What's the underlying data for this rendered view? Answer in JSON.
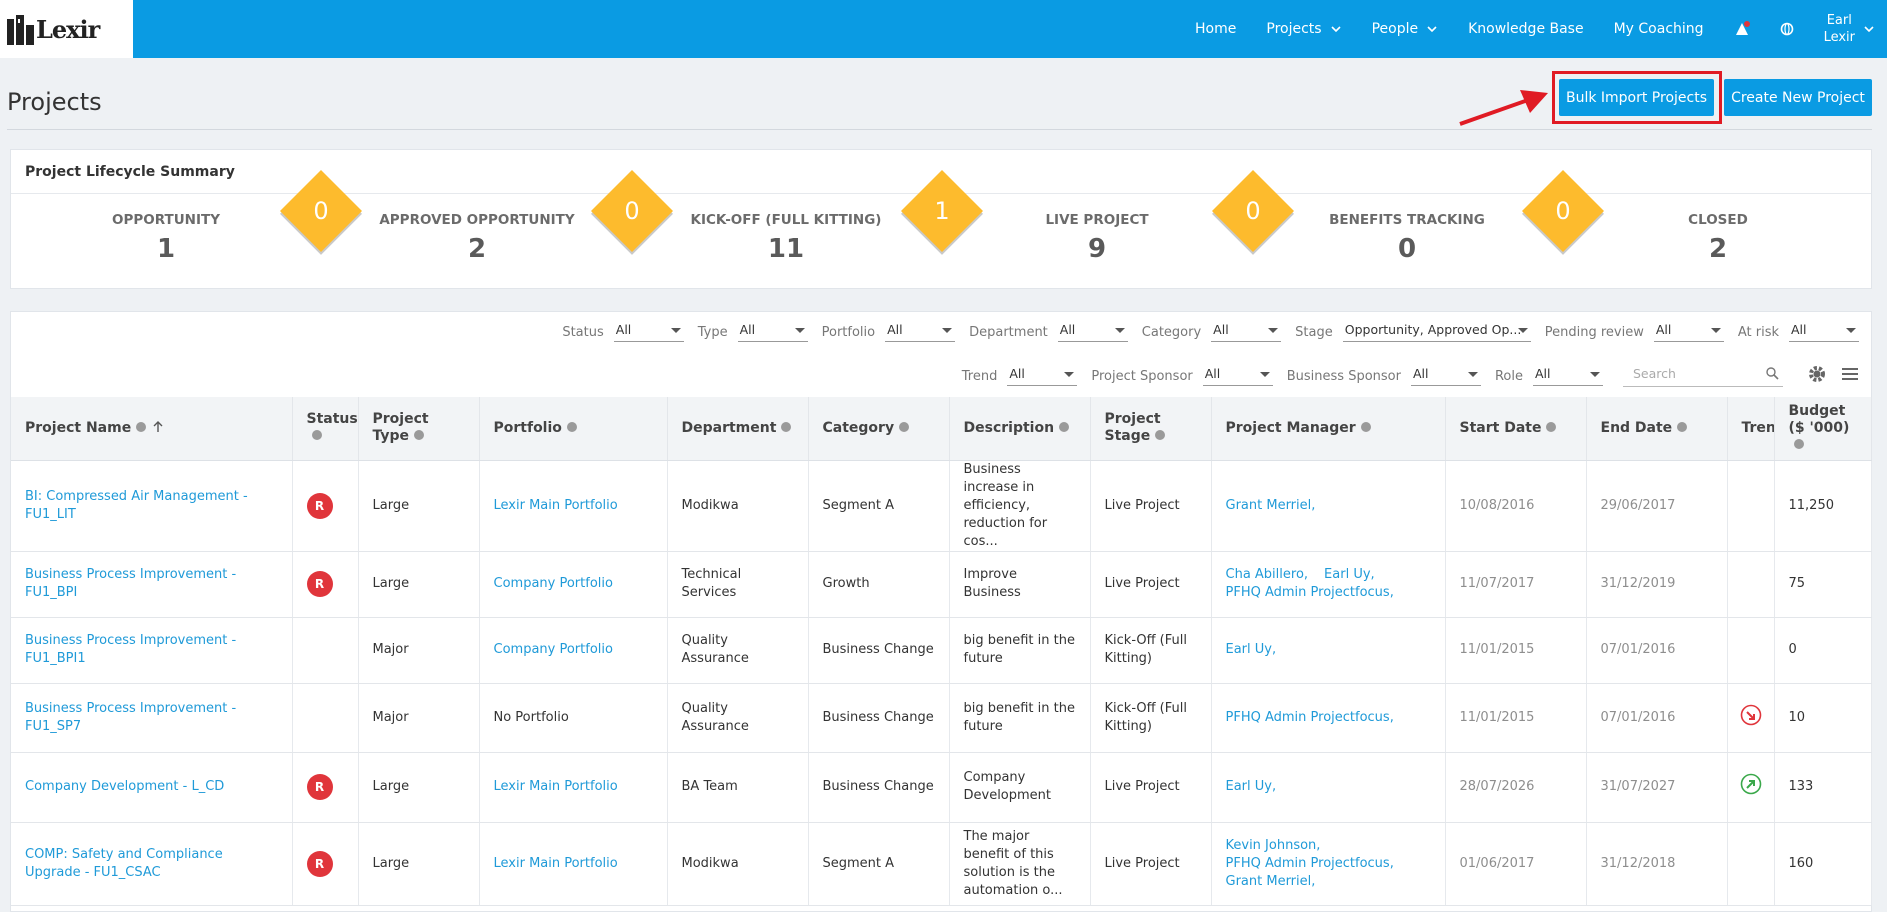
{
  "nav": {
    "logo": "Lexir",
    "items": [
      {
        "label": "Home"
      },
      {
        "label": "Projects",
        "dropdown": true
      },
      {
        "label": "People",
        "dropdown": true
      },
      {
        "label": "Knowledge Base"
      },
      {
        "label": "My Coaching"
      }
    ],
    "user": [
      "Earl",
      "Lexir"
    ]
  },
  "header": {
    "title": "Projects",
    "buttons": [
      "Bulk Import Projects",
      "Create New Project"
    ]
  },
  "summary": {
    "title": "Project Lifecycle Summary",
    "stages": [
      {
        "label": "OPPORTUNITY",
        "count": 1
      },
      {
        "label": "APPROVED OPPORTUNITY",
        "count": 2
      },
      {
        "label": "KICK-OFF (FULL KITTING)",
        "count": 11
      },
      {
        "label": "LIVE PROJECT",
        "count": 9
      },
      {
        "label": "BENEFITS TRACKING",
        "count": 0
      },
      {
        "label": "CLOSED",
        "count": 2
      }
    ],
    "transitions": [
      0,
      0,
      1,
      0,
      0
    ]
  },
  "filters": {
    "rows": [
      [
        {
          "label": "Status",
          "value": "All"
        },
        {
          "label": "Type",
          "value": "All"
        },
        {
          "label": "Portfolio",
          "value": "All"
        },
        {
          "label": "Department",
          "value": "All"
        },
        {
          "label": "Category",
          "value": "All"
        },
        {
          "label": "Stage",
          "value": "Opportunity, Approved Op...",
          "wide": true
        },
        {
          "label": "Pending review",
          "value": "All"
        },
        {
          "label": "At risk",
          "value": "All"
        }
      ],
      [
        {
          "label": "Trend",
          "value": "All"
        },
        {
          "label": "Project Sponsor",
          "value": "All"
        },
        {
          "label": "Business Sponsor",
          "value": "All"
        },
        {
          "label": "Role",
          "value": "All"
        }
      ]
    ],
    "search_placeholder": "Search"
  },
  "table": {
    "columns": [
      {
        "label": "Project Name",
        "style": "link",
        "sort": "asc"
      },
      {
        "label": "Status",
        "style": "badge"
      },
      {
        "label": "Project Type",
        "style": "text"
      },
      {
        "label": "Portfolio",
        "style": "link"
      },
      {
        "label": "Department",
        "style": "text"
      },
      {
        "label": "Category",
        "style": "text"
      },
      {
        "label": "Description",
        "style": "text"
      },
      {
        "label": "Project Stage",
        "style": "text"
      },
      {
        "label": "Project Manager",
        "style": "link"
      },
      {
        "label": "Start Date",
        "style": "date"
      },
      {
        "label": "End Date",
        "style": "date"
      },
      {
        "label": "Trend",
        "style": "trend"
      },
      {
        "label": "Budget ($ '000)",
        "style": "text"
      }
    ],
    "rows": [
      {
        "cells": [
          "BI: Compressed Air Management - FU1_LIT",
          "R",
          "Large",
          "Lexir Main Portfolio",
          "Modikwa",
          "Segment A",
          "Business increase in efficiency, reduction for cos...",
          "Live Project",
          [
            "Grant Merriel,"
          ],
          "10/08/2016",
          "29/06/2017",
          null,
          "11,250"
        ]
      },
      {
        "cells": [
          "Business Process Improvement - FU1_BPI",
          "R",
          "Large",
          "Company Portfolio",
          "Technical Services",
          "Growth",
          "Improve Business",
          "Live Project",
          [
            "Cha Abillero,",
            "Earl Uy,",
            "PFHQ Admin Projectfocus,"
          ],
          "11/07/2017",
          "31/12/2019",
          null,
          "75"
        ]
      },
      {
        "cells": [
          "Business Process Improvement - FU1_BPI1",
          null,
          "Major",
          "Company Portfolio",
          "Quality Assurance",
          "Business Change",
          "big benefit in the future",
          "Kick-Off (Full Kitting)",
          [
            "Earl Uy,"
          ],
          "11/01/2015",
          "07/01/2016",
          null,
          "0"
        ]
      },
      {
        "cells": [
          "Business Process Improvement - FU1_SP7",
          null,
          "Major",
          {
            "text": "No Portfolio",
            "style": "text"
          },
          "Quality Assurance",
          "Business Change",
          "big benefit in the future",
          "Kick-Off (Full Kitting)",
          [
            "PFHQ Admin Projectfocus,"
          ],
          "11/01/2015",
          "07/01/2016",
          "down",
          "10"
        ]
      },
      {
        "cells": [
          "Company Development - L_CD",
          "R",
          "Large",
          "Lexir Main Portfolio",
          "BA Team",
          "Business Change",
          "Company Development",
          "Live Project",
          [
            "Earl Uy,"
          ],
          "28/07/2026",
          "31/07/2027",
          "up",
          "133"
        ]
      },
      {
        "cells": [
          "COMP: Safety and Compliance Upgrade - FU1_CSAC",
          "R",
          "Large",
          "Lexir Main Portfolio",
          "Modikwa",
          "Segment A",
          "The major benefit of this solution is the automation o...",
          "Live Project",
          [
            "Kevin Johnson,",
            "PFHQ Admin Projectfocus,",
            "Grant Merriel,"
          ],
          "01/06/2017",
          "31/12/2018",
          null,
          "160"
        ]
      }
    ]
  }
}
